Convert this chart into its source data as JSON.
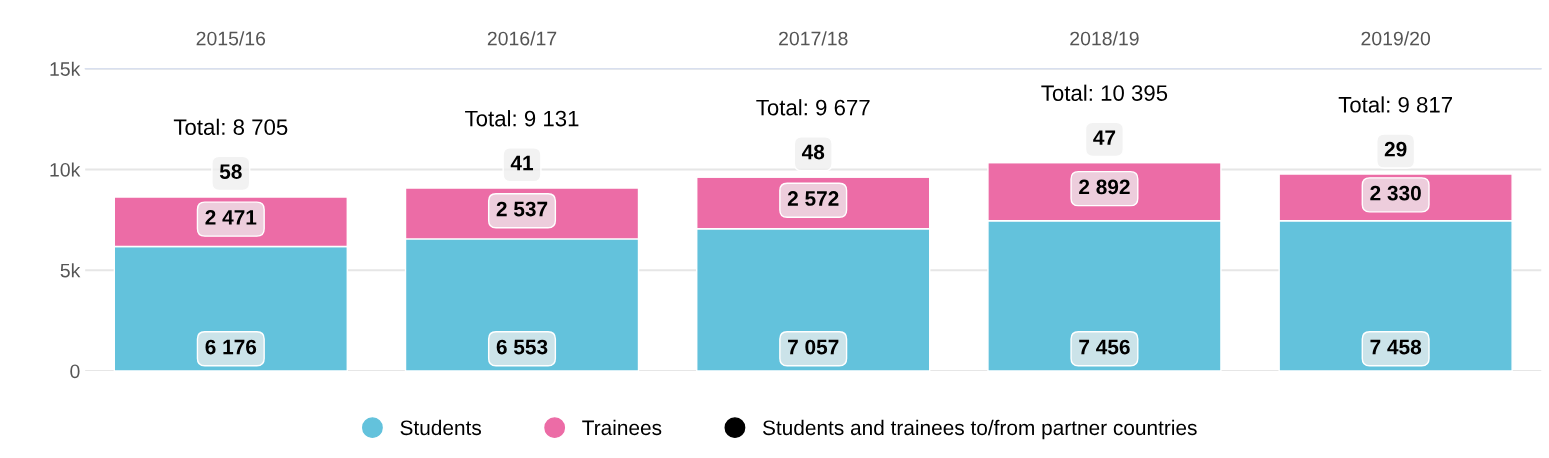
{
  "chart_data": {
    "type": "bar",
    "stacked": true,
    "categories": [
      "2015/16",
      "2016/17",
      "2017/18",
      "2018/19",
      "2019/20"
    ],
    "series": [
      {
        "name": "Students",
        "color": "#63c2dc",
        "values": [
          6176,
          6553,
          7057,
          7456,
          7458
        ],
        "value_labels": [
          "6 176",
          "6 553",
          "7 057",
          "7 456",
          "7 458"
        ]
      },
      {
        "name": "Trainees",
        "color": "#ec6ca6",
        "values": [
          2471,
          2537,
          2572,
          2892,
          2330
        ],
        "value_labels": [
          "2 471",
          "2 537",
          "2 572",
          "2 892",
          "2 330"
        ]
      },
      {
        "name": "Students and trainees to/from partner countries",
        "color": "#000000",
        "values": [
          58,
          41,
          48,
          47,
          29
        ],
        "value_labels": [
          "58",
          "41",
          "48",
          "47",
          "29"
        ]
      }
    ],
    "totals": [
      "Total: 8 705",
      "Total: 9 131",
      "Total: 9 677",
      "Total: 10 395",
      "Total: 9 817"
    ],
    "ylim": [
      0,
      15000
    ],
    "yticks": [
      {
        "value": 0,
        "label": "0"
      },
      {
        "value": 5000,
        "label": "5k"
      },
      {
        "value": 10000,
        "label": "10k"
      },
      {
        "value": 15000,
        "label": "15k"
      }
    ],
    "grid": "y",
    "legend": "bottom"
  }
}
